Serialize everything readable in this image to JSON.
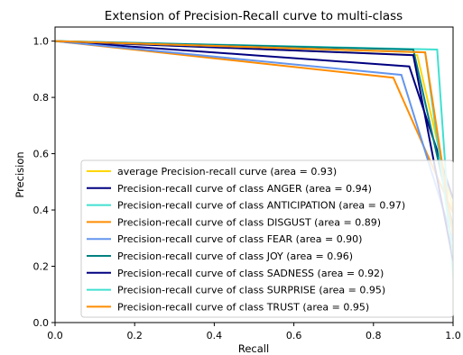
{
  "chart_data": {
    "type": "line",
    "title": "Extension of Precision-Recall curve to multi-class",
    "xlabel": "Recall",
    "ylabel": "Precision",
    "xlim": [
      0.0,
      1.0
    ],
    "ylim": [
      0.0,
      1.05
    ],
    "xticks": [
      "0.0",
      "0.2",
      "0.4",
      "0.6",
      "0.8",
      "1.0"
    ],
    "yticks": [
      "0.0",
      "0.2",
      "0.4",
      "0.6",
      "0.8",
      "1.0"
    ],
    "grid": false,
    "legend_position": "lower-left",
    "series": [
      {
        "name": "average Precision-recall curve (area = 0.93)",
        "color": "#ffd700",
        "x": [
          0.0,
          0.91,
          1.0
        ],
        "y": [
          1.0,
          0.95,
          0.4
        ]
      },
      {
        "name": "Precision-recall curve of class ANGER (area = 0.94)",
        "color": "#000080",
        "x": [
          0.0,
          0.89,
          1.0
        ],
        "y": [
          1.0,
          0.91,
          0.44
        ]
      },
      {
        "name": "Precision-recall curve of class ANTICIPATION (area = 0.97)",
        "color": "#40e0d0",
        "x": [
          0.0,
          0.96,
          1.0
        ],
        "y": [
          1.0,
          0.97,
          0.16
        ]
      },
      {
        "name": "Precision-recall curve of class DISGUST (area = 0.89)",
        "color": "#ff8c00",
        "x": [
          0.0,
          0.85,
          1.0
        ],
        "y": [
          1.0,
          0.87,
          0.39
        ]
      },
      {
        "name": "Precision-recall curve of class FEAR (area = 0.90)",
        "color": "#6495ed",
        "x": [
          0.0,
          0.87,
          1.0
        ],
        "y": [
          1.0,
          0.88,
          0.29
        ]
      },
      {
        "name": "Precision-recall curve of class JOY (area = 0.96)",
        "color": "#008080",
        "x": [
          0.0,
          0.9,
          1.0
        ],
        "y": [
          1.0,
          0.97,
          0.34
        ]
      },
      {
        "name": "Precision-recall curve of class SADNESS (area = 0.92)",
        "color": "#000080",
        "x": [
          0.0,
          0.9,
          1.0
        ],
        "y": [
          1.0,
          0.95,
          0.22
        ]
      },
      {
        "name": "Precision-recall curve of class SURPRISE (area = 0.95)",
        "color": "#40e0d0",
        "x": [
          0.0,
          0.93,
          1.0
        ],
        "y": [
          1.0,
          0.96,
          0.24
        ]
      },
      {
        "name": "Precision-recall curve of class TRUST (area = 0.95)",
        "color": "#ff8c00",
        "x": [
          0.0,
          0.93,
          1.0
        ],
        "y": [
          1.0,
          0.96,
          0.31
        ]
      }
    ]
  }
}
